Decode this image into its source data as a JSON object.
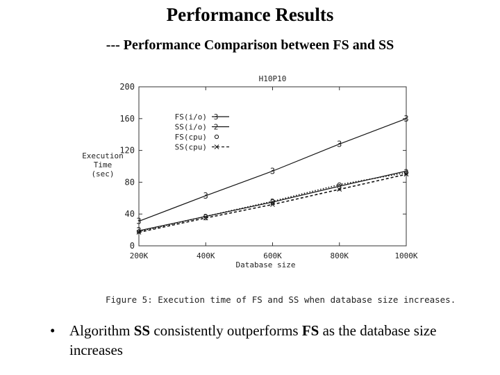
{
  "slide": {
    "title": "Performance Results",
    "subtitle": "--- Performance Comparison between FS and SS"
  },
  "chart_data": {
    "type": "line",
    "title": "H10P10",
    "xlabel": "Database size",
    "ylabel": [
      "Execution",
      "Time",
      "(sec)"
    ],
    "categories": [
      "200K",
      "400K",
      "600K",
      "800K",
      "1000K"
    ],
    "yticks": [
      "0",
      "40",
      "80",
      "120",
      "160",
      "200"
    ],
    "ylim": [
      0,
      200
    ],
    "grid": false,
    "legend_position": "top-left",
    "series": [
      {
        "name": "FS(i/o)",
        "marker": "3",
        "dash": "solid",
        "values": [
          31,
          63,
          94,
          128,
          160
        ]
      },
      {
        "name": "SS(i/o)",
        "marker": "2",
        "dash": "solid",
        "values": [
          19,
          37,
          55,
          75,
          94
        ]
      },
      {
        "name": "FS(cpu)",
        "marker": "o",
        "dash": "dotted",
        "values": [
          18,
          37,
          56,
          77,
          92
        ]
      },
      {
        "name": "SS(cpu)",
        "marker": "x",
        "dash": "dashed",
        "values": [
          17,
          35,
          52,
          71,
          90
        ]
      }
    ],
    "point_labels": [
      {
        "text": "3",
        "x": "200K",
        "y": 31
      },
      {
        "text": "2",
        "x": "200K",
        "y": 19
      },
      {
        "text": "3",
        "x": "400K",
        "y": 63
      },
      {
        "text": "2",
        "x": "400K",
        "y": 36
      },
      {
        "text": "3",
        "x": "600K",
        "y": 94
      },
      {
        "text": "2",
        "x": "600K",
        "y": 55
      },
      {
        "text": "3",
        "x": "800K",
        "y": 128
      },
      {
        "text": "2",
        "x": "800K",
        "y": 73
      },
      {
        "text": "3",
        "x": "1000K",
        "y": 160
      },
      {
        "text": "2",
        "x": "1000K",
        "y": 92
      }
    ],
    "caption": "Figure 5: Execution time of FS and SS when database size increases."
  },
  "bullets": [
    {
      "parts": [
        {
          "text": "Algorithm ",
          "bold": false
        },
        {
          "text": "SS",
          "bold": true
        },
        {
          "text": " consistently outperforms ",
          "bold": false
        },
        {
          "text": "FS",
          "bold": true
        },
        {
          "text": " as the database size increases",
          "bold": false
        }
      ]
    }
  ]
}
